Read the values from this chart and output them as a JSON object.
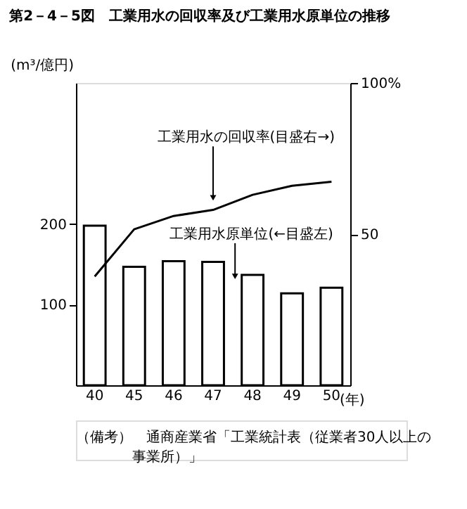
{
  "chart_data": {
    "type": "bar",
    "title": "第2－4－5図　工業用水の回収率及び工業用水原単位の推移",
    "categories": [
      "40",
      "45",
      "46",
      "47",
      "48",
      "49",
      "50"
    ],
    "xlabel": "(年)",
    "ylabel": "(m³/億円)",
    "series": [
      {
        "color": "#ffffff",
        "values": [
          198,
          147,
          154,
          153,
          137,
          114,
          121
        ]
      },
      {
        "type": "line",
        "axis": "y2",
        "color": "#000000",
        "values": [
          36,
          51.6,
          56,
          58,
          63,
          66,
          67.3
        ]
      }
    ],
    "ylim": [
      0,
      375
    ],
    "yticks": [
      100,
      200
    ],
    "y2lim": [
      0,
      100
    ],
    "y2ticks": [
      50,
      {
        "value": 100,
        "label": "100%"
      }
    ],
    "grid": false,
    "line_style": "solid",
    "annotations": [
      "工業用水の回収率(目盛右→)",
      "工業用水原単位(←目盛左)",
      "（備考）　通商産業省「工業統計表（従業者30人以上の事業所）」"
    ]
  }
}
